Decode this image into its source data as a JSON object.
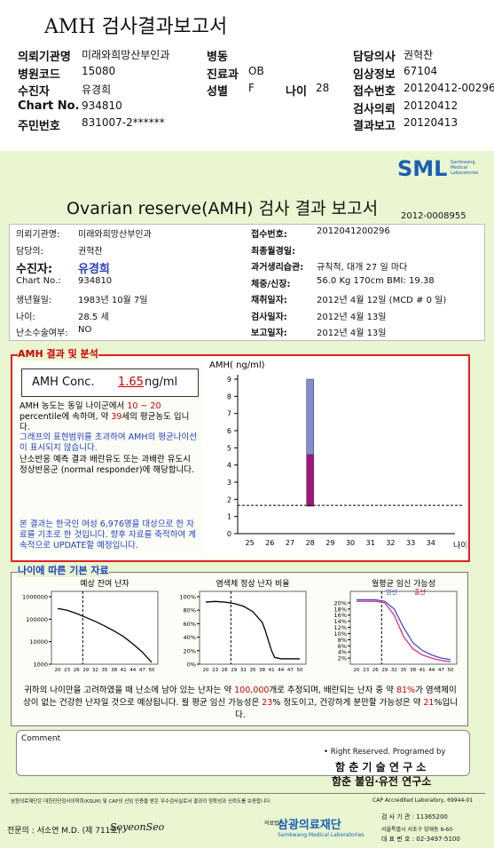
{
  "header": {
    "title": "AMH 검사결과보고서"
  },
  "info": [
    {
      "col1": [
        "의뢰기관명",
        "미래와희망산부인과"
      ],
      "col2": [
        "병동"
      ],
      "col4": [
        "담당의사",
        "권혁찬"
      ]
    },
    {
      "col1": [
        "병원코드",
        "15080"
      ],
      "col2": [
        "진료과",
        "OB"
      ],
      "col4": [
        "임상정보",
        "67104"
      ]
    },
    {
      "col1": [
        "수진자",
        "유경희"
      ],
      "col2": [
        "성별",
        "F"
      ],
      "col3": [
        "나이",
        "28"
      ],
      "col4": [
        "접수번호",
        "20120412-00296"
      ]
    },
    {
      "col1": [
        "Chart No.",
        "934810"
      ],
      "col4": [
        "검사의뢰",
        "20120412"
      ]
    },
    {
      "col1": [
        "주민번호",
        "831007-2******"
      ],
      "col4": [
        "결과보고",
        "20120413"
      ]
    }
  ],
  "report": {
    "logo": "SML",
    "logo_sub": "Samkwang Medical Laboratories",
    "title": "Ovarian reserve(AMH) 검사 결과 보고서",
    "number": "2012-0008955",
    "left": [
      [
        "의뢰기관명:",
        "미래와희망산부인과"
      ],
      [
        "담당의:",
        "권혁찬"
      ],
      [
        "수진자:",
        "유경희"
      ],
      [
        "Chart No.:",
        "934810"
      ],
      [
        "생년월일:",
        "1983년 10월 7일"
      ],
      [
        "나이:",
        "28.5 세"
      ],
      [
        "난소수술여부:",
        "NO"
      ]
    ],
    "right": [
      [
        "접수번호:",
        "2012041200296"
      ],
      [
        "최종월경일:"
      ],
      [
        "과거생리습관:",
        "규칙적, 대개 27 일 마다"
      ],
      [
        "체중/신장:",
        "56.0 Kg 170cm BMI: 19.38"
      ],
      [
        "채취일자:",
        "2012년 4월 12일 (MCD # 0 일)"
      ],
      [
        "검사일자:",
        "2012년 4월 13일"
      ],
      [
        "보고일자:",
        "2012년 4월 13일"
      ]
    ]
  },
  "analysis": {
    "heading": "AMH 결과 및 분석",
    "conc_label": "AMH Conc.",
    "conc_value": "1.65",
    "conc_unit": "ng/ml",
    "paragraphs": [
      [
        {
          "text": "AMH 농도는 동일 나이군에서 "
        },
        {
          "text": "10 ~ 20",
          "color": "#cc0000"
        },
        {
          "text": " percentile에 속하며, 약 "
        },
        {
          "text": "39",
          "color": "#cc0000"
        },
        {
          "text": "세의 평균농도 입니다."
        }
      ],
      [
        {
          "text": "그래프의 표현범위를 초과하여 AMH의 평균나이선이 표시되지 않습니다.",
          "color": "#1f3fbf"
        }
      ],
      [
        {
          "text": "난소반응 예측 결과 배란유도 또는 과배란 유도시 정상반응군 (normal responder)에 해당합니다."
        }
      ],
      [
        {
          "text": "본 결과는 한국인 여성 6,976명을 대상으로 한 자료를 기초로 한 것입니다. 향후 자료를 축적하여 계속적으로 UPDATE할 예정입니다.",
          "color": "#1f3fbf"
        }
      ]
    ]
  },
  "amh_chart": {
    "type": "range-bar",
    "title": "AMH( ng/ml)",
    "x_label": "나이",
    "xlim": [
      24.4,
      35.2
    ],
    "xticks": [
      25,
      26,
      27,
      28,
      29,
      30,
      31,
      32,
      33,
      34
    ],
    "ylim": [
      0,
      9
    ],
    "yticks": [
      0,
      1,
      2,
      3,
      4,
      5,
      6,
      7,
      8,
      9
    ],
    "bars": [
      {
        "x": 28,
        "low": 4.6,
        "high": 9,
        "color": "#7f8fd2"
      },
      {
        "x": 28,
        "low": 1.6,
        "high": 4.6,
        "color": "#a3137a"
      }
    ],
    "reference": 1.65
  },
  "basic": {
    "heading": "나이에 따른 기본 자료",
    "charts": [
      {
        "type": "line",
        "title": "예상 잔여 난자",
        "log": true,
        "xlim": [
          18,
          52
        ],
        "xticks": [
          20,
          23,
          26,
          29,
          32,
          35,
          38,
          41,
          44,
          47,
          50
        ],
        "ylim": [
          1000,
          1000000
        ],
        "yticks": [
          1000,
          10000,
          100000,
          1000000
        ],
        "marker": 28,
        "x": [
          20,
          23,
          26,
          29,
          32,
          35,
          38,
          41,
          44,
          47,
          50
        ],
        "series": [
          {
            "color": "#000000",
            "values": [
              300000,
              250000,
              180000,
              120000,
              80000,
              50000,
              30000,
              17000,
              8000,
              3500,
              1200
            ]
          }
        ]
      },
      {
        "type": "line",
        "title": "염색체 정상 난자 비율",
        "xlim": [
          18,
          52
        ],
        "xticks": [
          20,
          23,
          26,
          29,
          32,
          35,
          38,
          41,
          44,
          47,
          50
        ],
        "ylim": [
          0,
          100
        ],
        "yticks": [
          {
            "value": 0,
            "label": "0%"
          },
          {
            "value": 20,
            "label": "20%"
          },
          {
            "value": 40,
            "label": "40%"
          },
          {
            "value": 60,
            "label": "60%"
          },
          {
            "value": 80,
            "label": "80%"
          },
          {
            "value": 100,
            "label": "100%"
          }
        ],
        "marker": 28,
        "x": [
          20,
          23,
          26,
          29,
          32,
          35,
          38,
          39,
          40,
          41,
          42,
          44,
          47,
          50
        ],
        "series": [
          {
            "color": "#000000",
            "values": [
              92,
              93,
              92,
              90,
              86,
              78,
              62,
              50,
              35,
              20,
              10,
              8,
              8,
              8
            ]
          }
        ]
      },
      {
        "type": "line",
        "title": "월평균 임신 가능성",
        "xlim": [
          18,
          52
        ],
        "xticks": [
          20,
          23,
          26,
          29,
          32,
          35,
          38,
          41,
          44,
          47,
          50
        ],
        "ylim": [
          0,
          22
        ],
        "yticks": [
          {
            "value": 2,
            "label": "2%"
          },
          {
            "value": 4,
            "label": "4%"
          },
          {
            "value": 6,
            "label": "6%"
          },
          {
            "value": 8,
            "label": "8%"
          },
          {
            "value": 10,
            "label": "10%"
          },
          {
            "value": 12,
            "label": "12%"
          },
          {
            "value": 14,
            "label": "14%"
          },
          {
            "value": 16,
            "label": "16%"
          },
          {
            "value": 18,
            "label": "18%"
          },
          {
            "value": 20,
            "label": "20%"
          }
        ],
        "marker": 28,
        "x": [
          20,
          23,
          26,
          29,
          32,
          35,
          38,
          41,
          44,
          47,
          50
        ],
        "series": [
          {
            "name": "임신",
            "color": "#3f4fd0",
            "values": [
              21,
              21,
              21,
              20.5,
              18,
              12,
              7,
              4.5,
              3,
              2,
              1.5
            ]
          },
          {
            "name": "출산",
            "color": "#e0307a",
            "values": [
              20.5,
              20.5,
              20.5,
              20,
              16,
              9,
              5,
              3,
              2,
              1.2,
              0.8
            ]
          }
        ]
      }
    ],
    "summary": [
      {
        "text": "귀하의 나이만을 고려하였을 때 난소에 남아 있는 난자는 약 "
      },
      {
        "text": "100,000",
        "color": "#cc0000"
      },
      {
        "text": "개로 추정되며, 배란되는 난자 중 약 "
      },
      {
        "text": "81%",
        "color": "#cc0000"
      },
      {
        "text": "가 염색체이상이 없는 건강한 난자일 것으로 예상됩니다. 월 평균 임신 가능성은 "
      },
      {
        "text": "23",
        "color": "#cc0000"
      },
      {
        "text": "% 정도이고, 건강하게 분만할 가능성은 약 "
      },
      {
        "text": "21",
        "color": "#cc0000"
      },
      {
        "text": "%입니다."
      }
    ]
  },
  "comment": {
    "label": "Comment",
    "rights": "• Right Reserved. Programed by",
    "lab1": "함 춘 기 술 연 구 소",
    "lab2": "함춘 불임·유전 연구소"
  },
  "footer": {
    "note": "삼원의료재단은 대한진단검사의학회(KSLM) 및 CAP의 신임 인증을 받은 우수검사실로서 결과의 정확성과 신뢰도를 보증합니다.",
    "cap": "CAP Accredited Laboratory, 69944-01",
    "doctor": "전문의 : 서소연 M.D. (제 711호)",
    "signature": "SoyeonSeo",
    "org_type": "의료법인",
    "org": "삼광의료재단",
    "org_en": "Samkwang Medical Laboratories",
    "lab_no": "검 사 기 관 : 11365200",
    "address": "서울특별시 서초구 양재동 9-60",
    "phone": "대 표 번 호 : 02-3497-5100"
  }
}
